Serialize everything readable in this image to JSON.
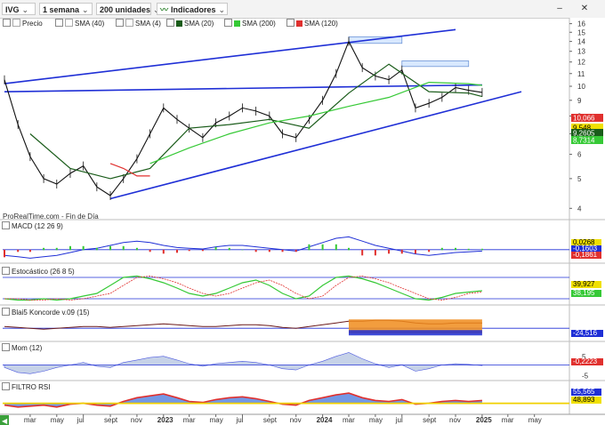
{
  "toolbar": {
    "symbol": "IVG",
    "timeframe": "1 semana",
    "units": "200 unidades",
    "indicators": "Indicadores",
    "minimize": "–",
    "close": "✕"
  },
  "legend": [
    {
      "label": "Precio",
      "color": "#ffffff"
    },
    {
      "label": "SMA (40)",
      "color": "#ffffff"
    },
    {
      "label": "SMA (4)",
      "color": "#ffffff"
    },
    {
      "label": "SMA (20)",
      "color": "#1a5c1a"
    },
    {
      "label": "SMA (200)",
      "color": "#36c936"
    },
    {
      "label": "SMA (120)",
      "color": "#e0302e"
    }
  ],
  "source_label": "ProRealTime.com - Fin de Día",
  "panels": {
    "macd": {
      "label": "MACD (12 26 9)",
      "values": [
        "0,0268",
        "-0,1603",
        "-0,1861"
      ]
    },
    "stoch": {
      "label": "Estocástico (26 8 5)",
      "values": [
        "39,927",
        "38,195"
      ]
    },
    "koncorde": {
      "label": "Blai5 Koncorde v.09 (15)",
      "values": [
        "-24,516"
      ]
    },
    "mom": {
      "label": "Mom (12)",
      "values": [
        "-0,2223"
      ],
      "ticks": [
        "5",
        "-5"
      ]
    },
    "rsi": {
      "label": "FILTRO RSI",
      "values": [
        "55,565",
        "48,893"
      ]
    }
  },
  "price_badges": [
    "10,066",
    "9,548",
    "9,2605",
    "8,7314"
  ],
  "chart_data": {
    "type": "line",
    "title": "",
    "xlabel": "",
    "ylabel": "",
    "ylim": [
      3.7,
      16.5
    ],
    "yscale": "log",
    "yticks": [
      16,
      15,
      14,
      13,
      12,
      11,
      10,
      9,
      8,
      7,
      6,
      5,
      4
    ],
    "x_ticks": [
      "mar",
      "may",
      "jul",
      "sept",
      "nov",
      "2023",
      "mar",
      "may",
      "jul",
      "sept",
      "nov",
      "2024",
      "mar",
      "may",
      "jul",
      "sept",
      "nov",
      "2025",
      "mar",
      "may"
    ],
    "x_dates": [
      "2022-01",
      "2022-03",
      "2022-05",
      "2022-07",
      "2022-09",
      "2022-11",
      "2023-01",
      "2023-03",
      "2023-05",
      "2023-07",
      "2023-09",
      "2023-11",
      "2024-01",
      "2024-03",
      "2024-05",
      "2024-07",
      "2024-09",
      "2024-11",
      "2025-01",
      "2025-03",
      "2025-05"
    ],
    "series": [
      {
        "name": "Precio",
        "x": [
          "2022-01",
          "2022-02",
          "2022-03",
          "2022-04",
          "2022-05",
          "2022-06",
          "2022-07",
          "2022-08",
          "2022-09",
          "2022-10",
          "2022-11",
          "2022-12",
          "2023-01",
          "2023-02",
          "2023-03",
          "2023-04",
          "2023-05",
          "2023-06",
          "2023-07",
          "2023-08",
          "2023-09",
          "2023-10",
          "2023-11",
          "2023-12",
          "2024-01",
          "2024-02",
          "2024-03",
          "2024-04",
          "2024-05",
          "2024-06",
          "2024-07",
          "2024-08",
          "2024-09",
          "2024-10",
          "2024-11",
          "2024-12",
          "2025-01"
        ],
        "values": [
          10.5,
          7.5,
          5.9,
          5.0,
          4.8,
          5.2,
          5.5,
          4.7,
          4.4,
          5.0,
          5.8,
          7.0,
          8.5,
          7.8,
          7.3,
          6.8,
          7.6,
          8.0,
          8.5,
          8.3,
          8.0,
          7.0,
          6.8,
          7.8,
          9.0,
          11.0,
          14.0,
          11.5,
          10.8,
          10.5,
          11.3,
          8.5,
          8.8,
          9.2,
          9.9,
          9.7,
          9.55
        ]
      },
      {
        "name": "SMA (20)",
        "x": [
          "2022-03",
          "2022-06",
          "2022-09",
          "2022-12",
          "2023-03",
          "2023-06",
          "2023-09",
          "2023-12",
          "2024-03",
          "2024-06",
          "2024-09",
          "2024-12",
          "2025-01"
        ],
        "values": [
          7.0,
          5.4,
          5.0,
          5.4,
          7.3,
          7.5,
          7.8,
          7.3,
          9.5,
          11.8,
          9.6,
          9.5,
          9.26
        ]
      },
      {
        "name": "SMA (200)",
        "x": [
          "2022-12",
          "2023-03",
          "2023-06",
          "2023-09",
          "2023-12",
          "2024-03",
          "2024-06",
          "2024-09",
          "2024-12",
          "2025-01"
        ],
        "values": [
          5.6,
          6.3,
          7.0,
          7.6,
          8.0,
          8.6,
          9.2,
          10.3,
          10.2,
          10.07
        ]
      },
      {
        "name": "SMA (120)",
        "x": [
          "2022-09",
          "2022-10",
          "2022-11",
          "2022-12"
        ],
        "values": [
          5.6,
          5.4,
          5.1,
          5.1
        ]
      }
    ],
    "trendlines": [
      {
        "from": [
          "2022-01",
          10.2
        ],
        "to": [
          "2024-11",
          15.3
        ],
        "color": "#1f2fd6"
      },
      {
        "from": [
          "2022-01",
          9.6
        ],
        "to": [
          "2025-01",
          10.1
        ],
        "color": "#1f2fd6"
      },
      {
        "from": [
          "2022-09",
          4.3
        ],
        "to": [
          "2025-04",
          9.6
        ],
        "color": "#1f2fd6"
      }
    ],
    "boxes": [
      {
        "from": [
          "2024-03",
          14.5
        ],
        "to": [
          "2024-07",
          13.8
        ]
      },
      {
        "from": [
          "2024-07",
          12.1
        ],
        "to": [
          "2024-12",
          11.6
        ]
      }
    ]
  }
}
